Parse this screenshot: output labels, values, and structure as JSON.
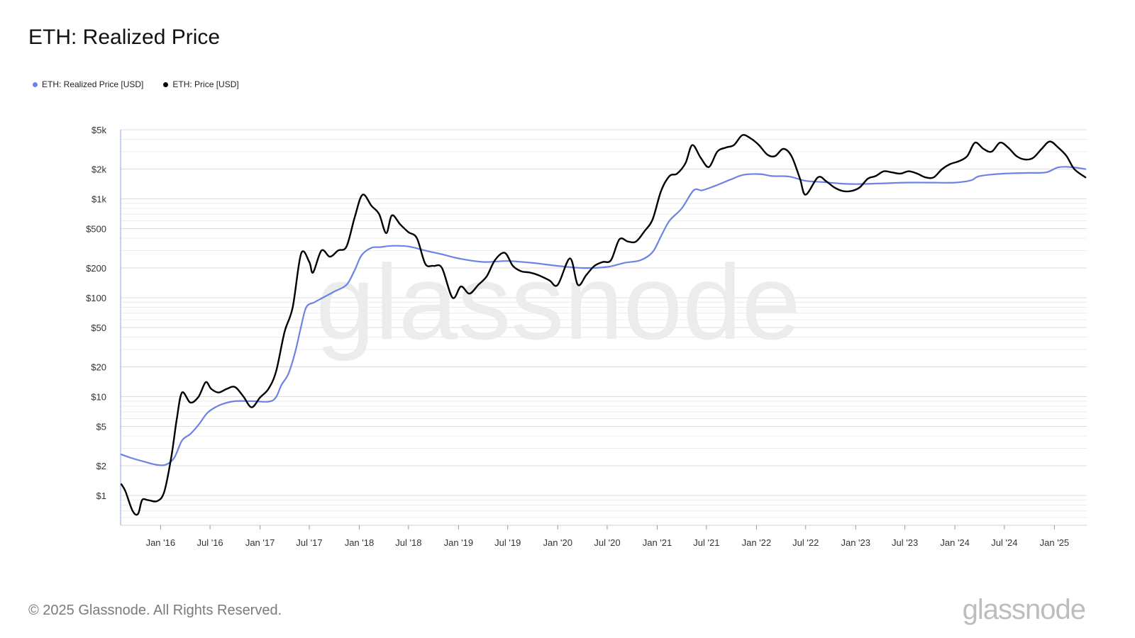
{
  "header": {
    "title": "ETH: Realized Price"
  },
  "legend": [
    {
      "label": "ETH: Realized Price [USD]",
      "color": "#6b82e6"
    },
    {
      "label": "ETH: Price [USD]",
      "color": "#000000"
    }
  ],
  "footer": {
    "copyright": "© 2025 Glassnode. All Rights Reserved.",
    "brand": "glassnode"
  },
  "watermark": "glassnode",
  "chart_data": {
    "type": "line",
    "title": "ETH: Realized Price",
    "xlabel": "",
    "ylabel": "",
    "yscale": "log",
    "ylim": [
      0.5,
      5000
    ],
    "xlim": [
      "2015-08-07",
      "2025-04-30"
    ],
    "grid": true,
    "legend_position": "top-left",
    "y_ticks": [
      {
        "value": 5000,
        "label": "$5k"
      },
      {
        "value": 2000,
        "label": "$2k"
      },
      {
        "value": 1000,
        "label": "$1k"
      },
      {
        "value": 500,
        "label": "$500"
      },
      {
        "value": 200,
        "label": "$200"
      },
      {
        "value": 100,
        "label": "$100"
      },
      {
        "value": 50,
        "label": "$50"
      },
      {
        "value": 20,
        "label": "$20"
      },
      {
        "value": 10,
        "label": "$10"
      },
      {
        "value": 5,
        "label": "$5"
      },
      {
        "value": 2,
        "label": "$2"
      },
      {
        "value": 1,
        "label": "$1"
      }
    ],
    "x_ticks": [
      {
        "date": "2016-01-01",
        "label": "Jan '16"
      },
      {
        "date": "2016-07-01",
        "label": "Jul '16"
      },
      {
        "date": "2017-01-01",
        "label": "Jan '17"
      },
      {
        "date": "2017-07-01",
        "label": "Jul '17"
      },
      {
        "date": "2018-01-01",
        "label": "Jan '18"
      },
      {
        "date": "2018-07-01",
        "label": "Jul '18"
      },
      {
        "date": "2019-01-01",
        "label": "Jan '19"
      },
      {
        "date": "2019-07-01",
        "label": "Jul '19"
      },
      {
        "date": "2020-01-01",
        "label": "Jan '20"
      },
      {
        "date": "2020-07-01",
        "label": "Jul '20"
      },
      {
        "date": "2021-01-01",
        "label": "Jan '21"
      },
      {
        "date": "2021-07-01",
        "label": "Jul '21"
      },
      {
        "date": "2022-01-01",
        "label": "Jan '22"
      },
      {
        "date": "2022-07-01",
        "label": "Jul '22"
      },
      {
        "date": "2023-01-01",
        "label": "Jan '23"
      },
      {
        "date": "2023-07-01",
        "label": "Jul '23"
      },
      {
        "date": "2024-01-01",
        "label": "Jan '24"
      },
      {
        "date": "2024-07-01",
        "label": "Jul '24"
      },
      {
        "date": "2025-01-01",
        "label": "Jan '25"
      }
    ],
    "series": [
      {
        "name": "ETH: Realized Price [USD]",
        "color": "#6b82e6",
        "points": [
          [
            "2015-08-10",
            2.6
          ],
          [
            "2015-09-15",
            2.4
          ],
          [
            "2015-11-01",
            2.2
          ],
          [
            "2015-12-15",
            2.05
          ],
          [
            "2016-01-20",
            2.05
          ],
          [
            "2016-02-20",
            2.4
          ],
          [
            "2016-03-20",
            3.6
          ],
          [
            "2016-04-20",
            4.2
          ],
          [
            "2016-05-20",
            5.2
          ],
          [
            "2016-06-20",
            6.8
          ],
          [
            "2016-07-20",
            7.8
          ],
          [
            "2016-08-20",
            8.5
          ],
          [
            "2016-10-01",
            9.0
          ],
          [
            "2016-12-01",
            9.0
          ],
          [
            "2017-02-01",
            8.9
          ],
          [
            "2017-02-28",
            9.8
          ],
          [
            "2017-03-20",
            13
          ],
          [
            "2017-04-15",
            17
          ],
          [
            "2017-05-10",
            28
          ],
          [
            "2017-05-31",
            50
          ],
          [
            "2017-06-20",
            80
          ],
          [
            "2017-07-20",
            90
          ],
          [
            "2017-08-20",
            100
          ],
          [
            "2017-09-30",
            115
          ],
          [
            "2017-11-15",
            135
          ],
          [
            "2017-12-15",
            190
          ],
          [
            "2018-01-10",
            270
          ],
          [
            "2018-02-15",
            320
          ],
          [
            "2018-03-20",
            325
          ],
          [
            "2018-05-01",
            335
          ],
          [
            "2018-07-01",
            330
          ],
          [
            "2018-09-01",
            300
          ],
          [
            "2018-11-01",
            275
          ],
          [
            "2019-01-01",
            250
          ],
          [
            "2019-04-01",
            230
          ],
          [
            "2019-07-01",
            235
          ],
          [
            "2019-10-01",
            225
          ],
          [
            "2020-01-01",
            210
          ],
          [
            "2020-04-01",
            200
          ],
          [
            "2020-07-01",
            205
          ],
          [
            "2020-09-01",
            225
          ],
          [
            "2020-11-01",
            240
          ],
          [
            "2020-12-15",
            290
          ],
          [
            "2021-01-15",
            420
          ],
          [
            "2021-02-15",
            600
          ],
          [
            "2021-04-01",
            800
          ],
          [
            "2021-05-15",
            1220
          ],
          [
            "2021-06-15",
            1220
          ],
          [
            "2021-08-01",
            1350
          ],
          [
            "2021-10-01",
            1580
          ],
          [
            "2021-11-15",
            1750
          ],
          [
            "2022-01-15",
            1780
          ],
          [
            "2022-03-01",
            1700
          ],
          [
            "2022-05-01",
            1680
          ],
          [
            "2022-07-01",
            1520
          ],
          [
            "2022-09-01",
            1480
          ],
          [
            "2022-11-01",
            1430
          ],
          [
            "2023-01-01",
            1410
          ],
          [
            "2023-04-01",
            1430
          ],
          [
            "2023-07-01",
            1460
          ],
          [
            "2023-10-01",
            1460
          ],
          [
            "2024-01-01",
            1460
          ],
          [
            "2024-03-01",
            1540
          ],
          [
            "2024-04-01",
            1700
          ],
          [
            "2024-07-01",
            1800
          ],
          [
            "2024-10-01",
            1830
          ],
          [
            "2024-12-01",
            1850
          ],
          [
            "2025-01-15",
            2080
          ],
          [
            "2025-03-01",
            2100
          ],
          [
            "2025-04-25",
            2000
          ]
        ]
      },
      {
        "name": "ETH: Price [USD]",
        "color": "#000000",
        "points": [
          [
            "2015-08-10",
            1.3
          ],
          [
            "2015-08-25",
            1.1
          ],
          [
            "2015-09-20",
            0.7
          ],
          [
            "2015-10-10",
            0.65
          ],
          [
            "2015-10-25",
            0.9
          ],
          [
            "2015-11-15",
            0.9
          ],
          [
            "2015-12-20",
            0.88
          ],
          [
            "2016-01-15",
            1.1
          ],
          [
            "2016-02-10",
            2.5
          ],
          [
            "2016-03-01",
            6
          ],
          [
            "2016-03-20",
            11
          ],
          [
            "2016-04-20",
            8.7
          ],
          [
            "2016-05-20",
            10
          ],
          [
            "2016-06-15",
            14
          ],
          [
            "2016-07-05",
            12
          ],
          [
            "2016-08-01",
            11
          ],
          [
            "2016-09-01",
            12
          ],
          [
            "2016-10-01",
            12.5
          ],
          [
            "2016-11-01",
            10
          ],
          [
            "2016-12-01",
            7.8
          ],
          [
            "2017-01-01",
            9.8
          ],
          [
            "2017-02-01",
            12
          ],
          [
            "2017-03-01",
            18
          ],
          [
            "2017-04-01",
            45
          ],
          [
            "2017-05-01",
            80
          ],
          [
            "2017-06-01",
            280
          ],
          [
            "2017-07-01",
            230
          ],
          [
            "2017-07-15",
            180
          ],
          [
            "2017-08-15",
            300
          ],
          [
            "2017-09-15",
            260
          ],
          [
            "2017-10-15",
            300
          ],
          [
            "2017-11-15",
            330
          ],
          [
            "2017-12-15",
            650
          ],
          [
            "2018-01-13",
            1100
          ],
          [
            "2018-02-15",
            850
          ],
          [
            "2018-03-15",
            700
          ],
          [
            "2018-04-10",
            450
          ],
          [
            "2018-05-01",
            680
          ],
          [
            "2018-06-01",
            550
          ],
          [
            "2018-07-01",
            460
          ],
          [
            "2018-08-01",
            400
          ],
          [
            "2018-09-01",
            220
          ],
          [
            "2018-10-01",
            210
          ],
          [
            "2018-11-01",
            200
          ],
          [
            "2018-12-10",
            100
          ],
          [
            "2019-01-10",
            130
          ],
          [
            "2019-02-10",
            110
          ],
          [
            "2019-03-15",
            135
          ],
          [
            "2019-04-15",
            165
          ],
          [
            "2019-05-15",
            240
          ],
          [
            "2019-06-20",
            285
          ],
          [
            "2019-07-20",
            210
          ],
          [
            "2019-08-20",
            185
          ],
          [
            "2019-09-20",
            180
          ],
          [
            "2019-10-20",
            170
          ],
          [
            "2019-12-01",
            150
          ],
          [
            "2020-01-01",
            135
          ],
          [
            "2020-02-15",
            250
          ],
          [
            "2020-03-15",
            135
          ],
          [
            "2020-04-15",
            170
          ],
          [
            "2020-05-15",
            210
          ],
          [
            "2020-06-15",
            230
          ],
          [
            "2020-07-15",
            240
          ],
          [
            "2020-08-15",
            390
          ],
          [
            "2020-09-15",
            370
          ],
          [
            "2020-10-15",
            370
          ],
          [
            "2020-11-15",
            470
          ],
          [
            "2020-12-15",
            620
          ],
          [
            "2021-01-15",
            1200
          ],
          [
            "2021-02-15",
            1700
          ],
          [
            "2021-03-15",
            1800
          ],
          [
            "2021-04-15",
            2300
          ],
          [
            "2021-05-10",
            3500
          ],
          [
            "2021-06-10",
            2600
          ],
          [
            "2021-07-10",
            2100
          ],
          [
            "2021-08-10",
            3000
          ],
          [
            "2021-09-10",
            3300
          ],
          [
            "2021-10-10",
            3500
          ],
          [
            "2021-11-10",
            4400
          ],
          [
            "2021-12-10",
            4100
          ],
          [
            "2022-01-10",
            3500
          ],
          [
            "2022-02-10",
            2800
          ],
          [
            "2022-03-10",
            2700
          ],
          [
            "2022-04-10",
            3200
          ],
          [
            "2022-05-10",
            2700
          ],
          [
            "2022-06-10",
            1600
          ],
          [
            "2022-07-01",
            1100
          ],
          [
            "2022-08-15",
            1650
          ],
          [
            "2022-09-15",
            1500
          ],
          [
            "2022-10-15",
            1300
          ],
          [
            "2022-11-15",
            1200
          ],
          [
            "2022-12-15",
            1200
          ],
          [
            "2023-01-15",
            1300
          ],
          [
            "2023-02-15",
            1600
          ],
          [
            "2023-03-15",
            1700
          ],
          [
            "2023-04-15",
            1900
          ],
          [
            "2023-05-15",
            1850
          ],
          [
            "2023-06-15",
            1800
          ],
          [
            "2023-07-15",
            1900
          ],
          [
            "2023-08-15",
            1800
          ],
          [
            "2023-09-15",
            1650
          ],
          [
            "2023-10-15",
            1650
          ],
          [
            "2023-11-15",
            2000
          ],
          [
            "2023-12-15",
            2250
          ],
          [
            "2024-01-15",
            2400
          ],
          [
            "2024-02-15",
            2700
          ],
          [
            "2024-03-15",
            3700
          ],
          [
            "2024-04-15",
            3200
          ],
          [
            "2024-05-15",
            3000
          ],
          [
            "2024-06-15",
            3700
          ],
          [
            "2024-07-15",
            3300
          ],
          [
            "2024-08-15",
            2700
          ],
          [
            "2024-09-15",
            2500
          ],
          [
            "2024-10-15",
            2600
          ],
          [
            "2024-11-15",
            3200
          ],
          [
            "2024-12-15",
            3800
          ],
          [
            "2025-01-15",
            3300
          ],
          [
            "2025-02-15",
            2700
          ],
          [
            "2025-03-15",
            2000
          ],
          [
            "2025-04-25",
            1650
          ]
        ]
      }
    ]
  }
}
